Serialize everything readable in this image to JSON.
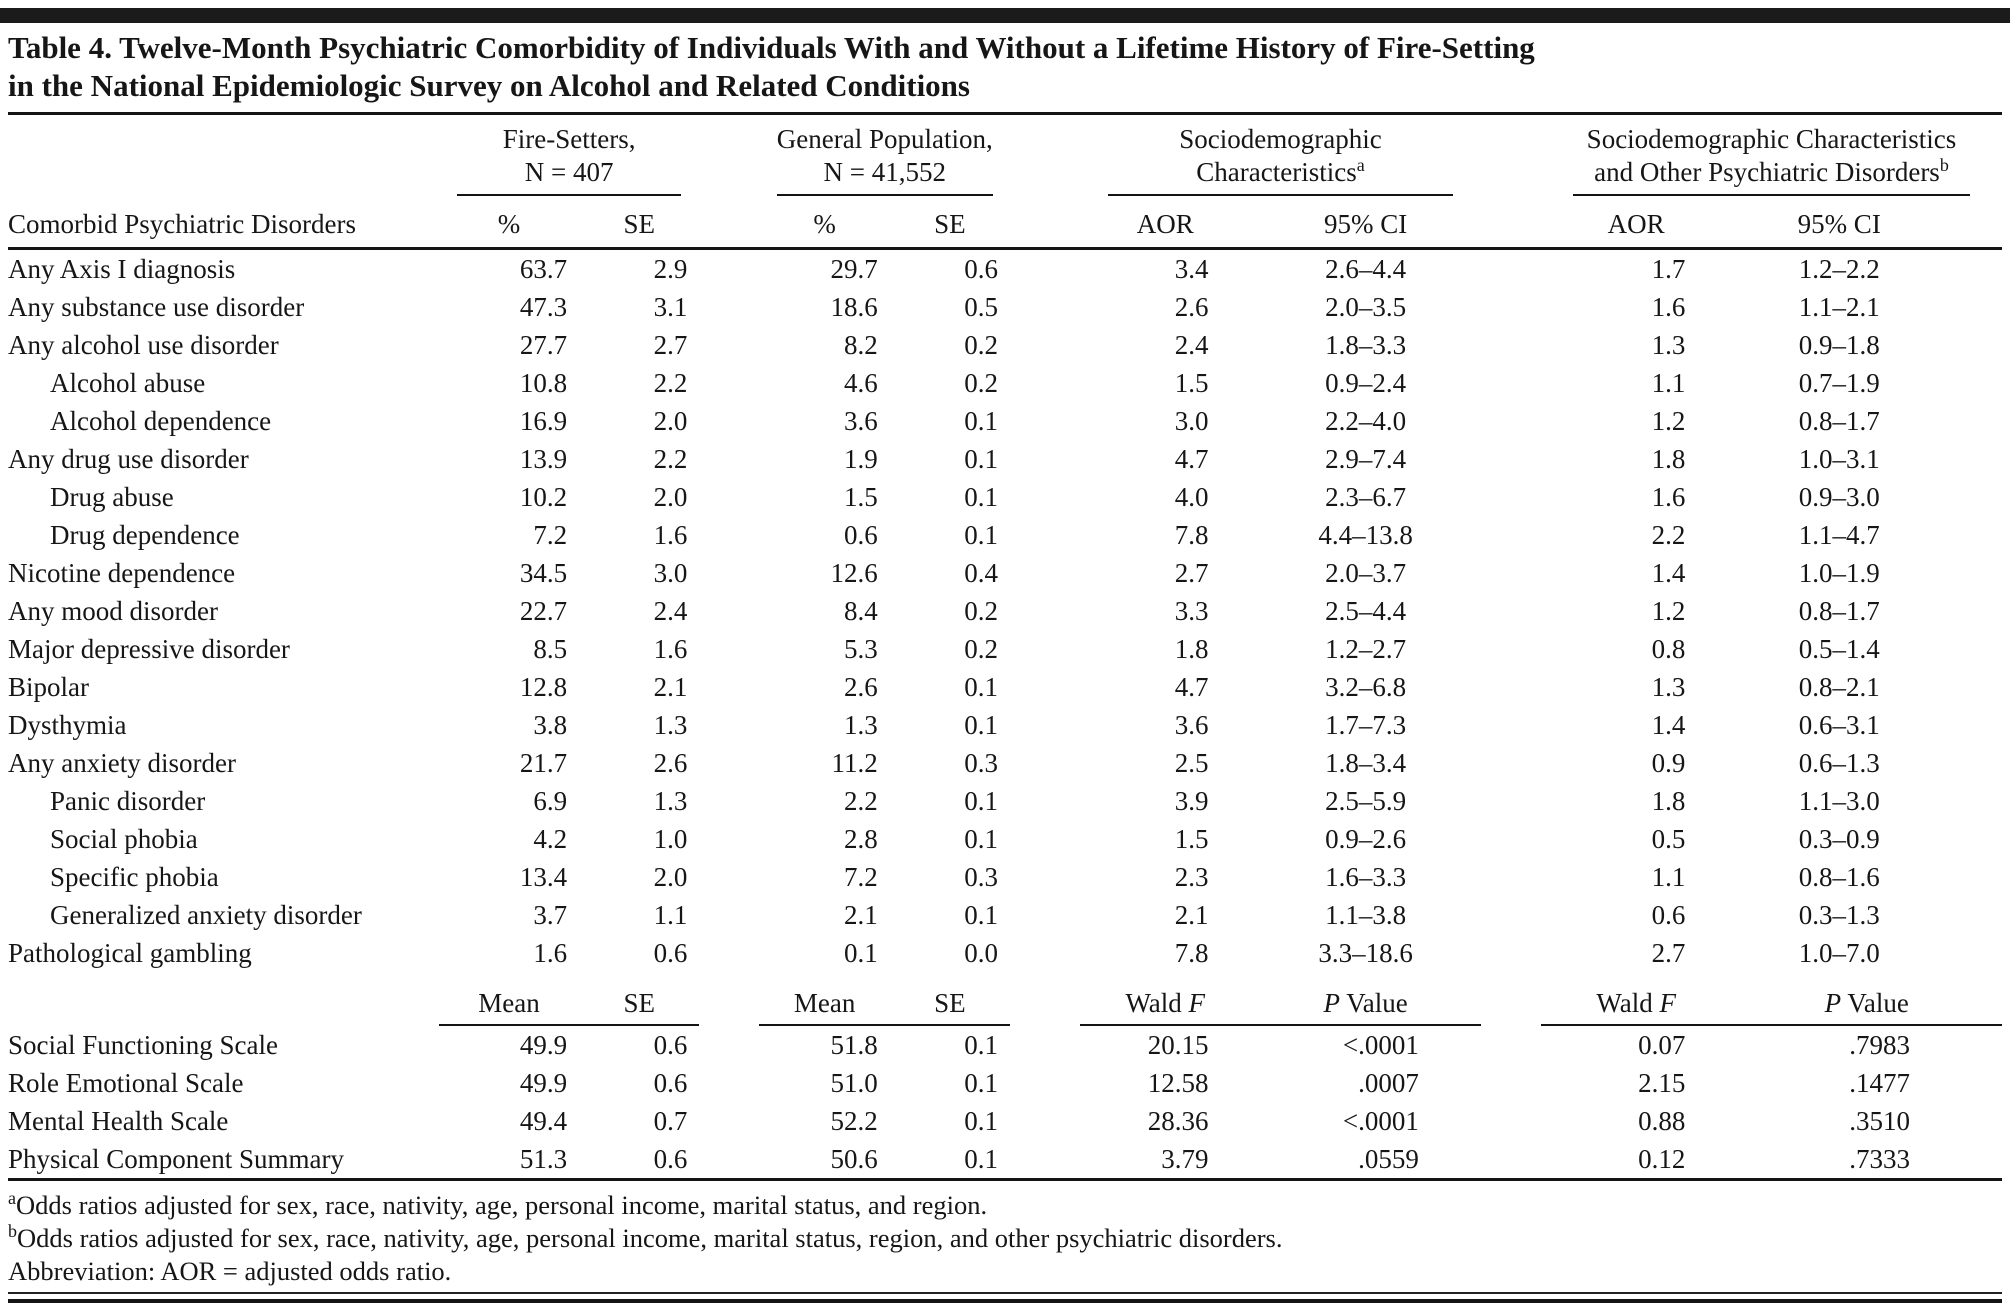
{
  "title": "Table 4. Twelve-Month Psychiatric Comorbidity of Individuals With and Without a Lifetime History of Fire-Setting in the National Epidemiologic Survey on Alcohol and Related Conditions",
  "header": {
    "row_label": "Comorbid Psychiatric Disorders",
    "groups": [
      {
        "line1": "Fire-Setters,",
        "line2": "N = 407",
        "sup": "",
        "cols": [
          "%",
          "SE"
        ]
      },
      {
        "line1": "General Population,",
        "line2": "N = 41,552",
        "sup": "",
        "cols": [
          "%",
          "SE"
        ]
      },
      {
        "line1": "Sociodemographic",
        "line2": "Characteristics",
        "sup": "a",
        "cols": [
          "AOR",
          "95% CI"
        ]
      },
      {
        "line1": "Sociodemographic Characteristics",
        "line2": "and Other Psychiatric Disorders",
        "sup": "b",
        "cols": [
          "AOR",
          "95% CI"
        ]
      }
    ]
  },
  "disorder_rows": [
    {
      "label": "Any Axis I diagnosis",
      "indent": false,
      "values": [
        "63.7",
        "2.9",
        "29.7",
        "0.6",
        "3.4",
        "2.6–4.4",
        "1.7",
        "1.2–2.2"
      ]
    },
    {
      "label": "Any substance use disorder",
      "indent": false,
      "values": [
        "47.3",
        "3.1",
        "18.6",
        "0.5",
        "2.6",
        "2.0–3.5",
        "1.6",
        "1.1–2.1"
      ]
    },
    {
      "label": "Any alcohol use disorder",
      "indent": false,
      "values": [
        "27.7",
        "2.7",
        "8.2",
        "0.2",
        "2.4",
        "1.8–3.3",
        "1.3",
        "0.9–1.8"
      ]
    },
    {
      "label": "Alcohol abuse",
      "indent": true,
      "values": [
        "10.8",
        "2.2",
        "4.6",
        "0.2",
        "1.5",
        "0.9–2.4",
        "1.1",
        "0.7–1.9"
      ]
    },
    {
      "label": "Alcohol dependence",
      "indent": true,
      "values": [
        "16.9",
        "2.0",
        "3.6",
        "0.1",
        "3.0",
        "2.2–4.0",
        "1.2",
        "0.8–1.7"
      ]
    },
    {
      "label": "Any drug use disorder",
      "indent": false,
      "values": [
        "13.9",
        "2.2",
        "1.9",
        "0.1",
        "4.7",
        "2.9–7.4",
        "1.8",
        "1.0–3.1"
      ]
    },
    {
      "label": "Drug abuse",
      "indent": true,
      "values": [
        "10.2",
        "2.0",
        "1.5",
        "0.1",
        "4.0",
        "2.3–6.7",
        "1.6",
        "0.9–3.0"
      ]
    },
    {
      "label": "Drug dependence",
      "indent": true,
      "values": [
        "7.2",
        "1.6",
        "0.6",
        "0.1",
        "7.8",
        "4.4–13.8",
        "2.2",
        "1.1–4.7"
      ]
    },
    {
      "label": "Nicotine dependence",
      "indent": false,
      "values": [
        "34.5",
        "3.0",
        "12.6",
        "0.4",
        "2.7",
        "2.0–3.7",
        "1.4",
        "1.0–1.9"
      ]
    },
    {
      "label": "Any mood disorder",
      "indent": false,
      "values": [
        "22.7",
        "2.4",
        "8.4",
        "0.2",
        "3.3",
        "2.5–4.4",
        "1.2",
        "0.8–1.7"
      ]
    },
    {
      "label": "Major depressive disorder",
      "indent": false,
      "values": [
        "8.5",
        "1.6",
        "5.3",
        "0.2",
        "1.8",
        "1.2–2.7",
        "0.8",
        "0.5–1.4"
      ]
    },
    {
      "label": "Bipolar",
      "indent": false,
      "values": [
        "12.8",
        "2.1",
        "2.6",
        "0.1",
        "4.7",
        "3.2–6.8",
        "1.3",
        "0.8–2.1"
      ]
    },
    {
      "label": "Dysthymia",
      "indent": false,
      "values": [
        "3.8",
        "1.3",
        "1.3",
        "0.1",
        "3.6",
        "1.7–7.3",
        "1.4",
        "0.6–3.1"
      ]
    },
    {
      "label": "Any anxiety disorder",
      "indent": false,
      "values": [
        "21.7",
        "2.6",
        "11.2",
        "0.3",
        "2.5",
        "1.8–3.4",
        "0.9",
        "0.6–1.3"
      ]
    },
    {
      "label": "Panic disorder",
      "indent": true,
      "values": [
        "6.9",
        "1.3",
        "2.2",
        "0.1",
        "3.9",
        "2.5–5.9",
        "1.8",
        "1.1–3.0"
      ]
    },
    {
      "label": "Social phobia",
      "indent": true,
      "values": [
        "4.2",
        "1.0",
        "2.8",
        "0.1",
        "1.5",
        "0.9–2.6",
        "0.5",
        "0.3–0.9"
      ]
    },
    {
      "label": "Specific phobia",
      "indent": true,
      "values": [
        "13.4",
        "2.0",
        "7.2",
        "0.3",
        "2.3",
        "1.6–3.3",
        "1.1",
        "0.8–1.6"
      ]
    },
    {
      "label": "Generalized anxiety disorder",
      "indent": true,
      "values": [
        "3.7",
        "1.1",
        "2.1",
        "0.1",
        "2.1",
        "1.1–3.8",
        "0.6",
        "0.3–1.3"
      ]
    },
    {
      "label": "Pathological gambling",
      "indent": false,
      "values": [
        "1.6",
        "0.6",
        "0.1",
        "0.0",
        "7.8",
        "3.3–18.6",
        "2.7",
        "1.0–7.0"
      ]
    }
  ],
  "scale_header": [
    "Mean",
    "SE",
    "Mean",
    "SE",
    "Wald F",
    "P Value",
    "Wald F",
    "P Value"
  ],
  "scale_rows": [
    {
      "label": "Social Functioning Scale",
      "values": [
        "49.9",
        "0.6",
        "51.8",
        "0.1",
        "20.15",
        "<.0001",
        "0.07",
        ".7983"
      ]
    },
    {
      "label": "Role Emotional Scale",
      "values": [
        "49.9",
        "0.6",
        "51.0",
        "0.1",
        "12.58",
        ".0007",
        "2.15",
        ".1477"
      ]
    },
    {
      "label": "Mental Health Scale",
      "values": [
        "49.4",
        "0.7",
        "52.2",
        "0.1",
        "28.36",
        "<.0001",
        "0.88",
        ".3510"
      ]
    },
    {
      "label": "Physical Component Summary",
      "values": [
        "51.3",
        "0.6",
        "50.6",
        "0.1",
        "3.79",
        ".0559",
        "0.12",
        ".7333"
      ]
    }
  ],
  "footnotes": [
    {
      "sup": "a",
      "text": "Odds ratios adjusted for sex, race, nativity, age, personal income, marital status, and region."
    },
    {
      "sup": "b",
      "text": "Odds ratios adjusted for sex, race, nativity, age, personal income, marital status, region, and other psychiatric disorders."
    },
    {
      "sup": "",
      "text": "Abbreviation: AOR = adjusted odds ratio."
    }
  ]
}
